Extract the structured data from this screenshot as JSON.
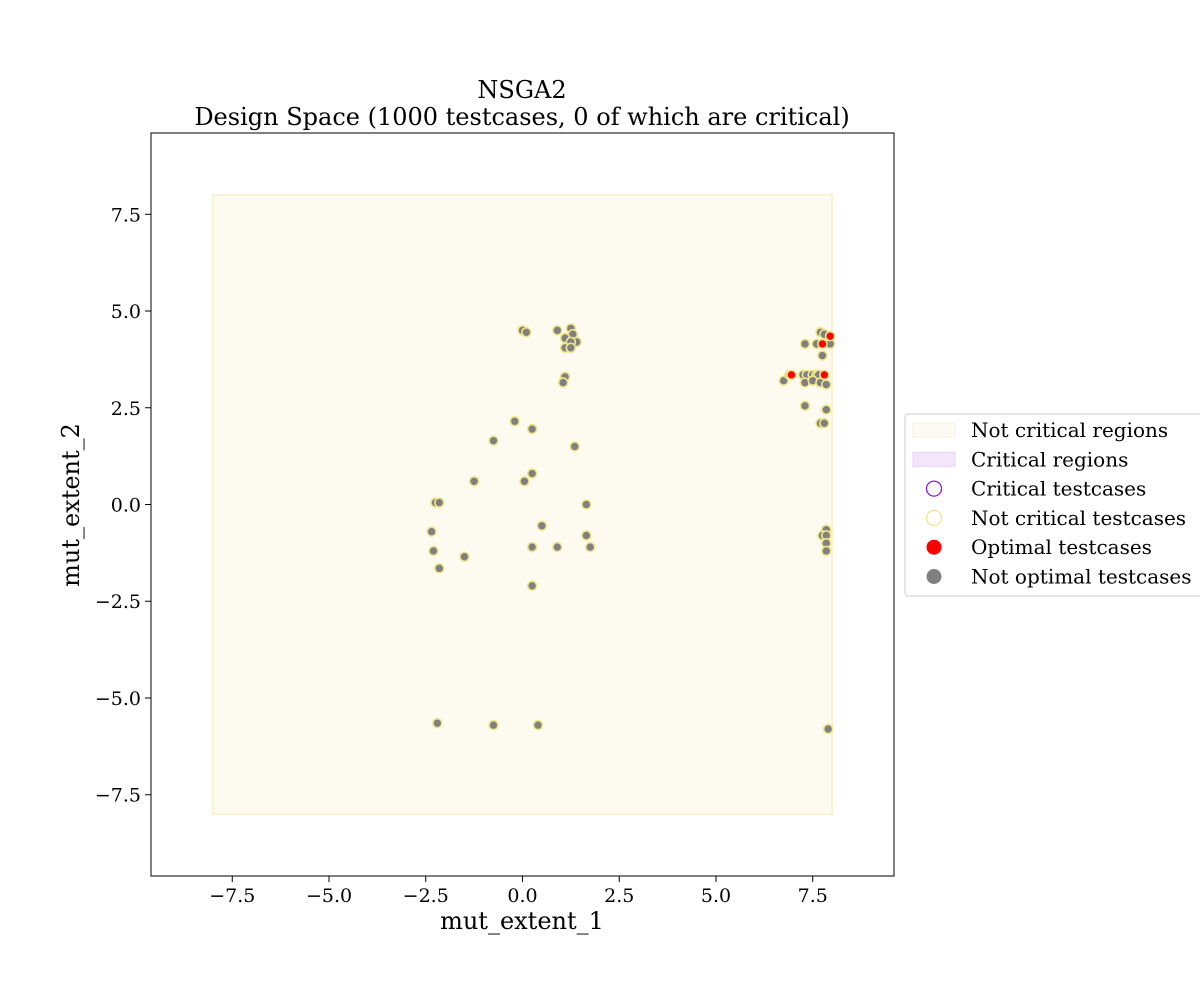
{
  "chart_data": {
    "type": "scatter",
    "title": "NSGA2",
    "subtitle": "Design Space (1000 testcases, 0 of which are critical)",
    "xlabel": "mut_extent_1",
    "ylabel": "mut_extent_2",
    "xlim": [
      -9.6,
      9.6
    ],
    "ylim": [
      -9.6,
      9.6
    ],
    "xticks": [
      -7.5,
      -5.0,
      -2.5,
      0.0,
      2.5,
      5.0,
      7.5
    ],
    "yticks": [
      -7.5,
      -5.0,
      -2.5,
      0.0,
      2.5,
      5.0,
      7.5
    ],
    "xtick_labels": [
      "−7.5",
      "−5.0",
      "−2.5",
      "0.0",
      "2.5",
      "5.0",
      "7.5"
    ],
    "ytick_labels": [
      "−7.5",
      "−5.0",
      "−2.5",
      "0.0",
      "2.5",
      "5.0",
      "7.5"
    ],
    "grid": false,
    "legend_placement": "center-right outside",
    "regions": [
      {
        "name": "Not critical regions",
        "x_range": [
          -8,
          8
        ],
        "y_range": [
          -8,
          8
        ],
        "color": "#fdfbf0",
        "edge": "#f6f0c8"
      }
    ],
    "legend": [
      {
        "label": "Not critical regions",
        "kind": "patch",
        "color": "#fbfbf3",
        "edge": "#f3f3e0"
      },
      {
        "label": "Critical regions",
        "kind": "patch",
        "color": "#f3e6fa",
        "edge": "#e9d4f5"
      },
      {
        "label": "Critical testcases",
        "kind": "ring",
        "color": "#8a1fc9"
      },
      {
        "label": "Not critical testcases",
        "kind": "ring",
        "color": "#f0e68c"
      },
      {
        "label": "Optimal testcases",
        "kind": "dot",
        "color": "#ff0000"
      },
      {
        "label": "Not optimal testcases",
        "kind": "dot",
        "color": "#808080"
      }
    ],
    "series": [
      {
        "name": "Not optimal testcases",
        "fill": "#808080",
        "edge": "#f0e68c",
        "points": [
          [
            0.0,
            4.5
          ],
          [
            0.1,
            4.45
          ],
          [
            0.9,
            4.5
          ],
          [
            1.25,
            4.55
          ],
          [
            1.3,
            4.4
          ],
          [
            1.1,
            4.3
          ],
          [
            1.4,
            4.2
          ],
          [
            1.25,
            4.2
          ],
          [
            1.1,
            4.05
          ],
          [
            1.25,
            4.05
          ],
          [
            1.1,
            3.3
          ],
          [
            1.05,
            3.15
          ],
          [
            -0.2,
            2.15
          ],
          [
            0.25,
            1.95
          ],
          [
            -0.75,
            1.65
          ],
          [
            1.35,
            1.5
          ],
          [
            0.25,
            0.8
          ],
          [
            0.05,
            0.6
          ],
          [
            -1.25,
            0.6
          ],
          [
            -2.25,
            0.05
          ],
          [
            -2.15,
            0.05
          ],
          [
            1.65,
            0.0
          ],
          [
            0.5,
            -0.55
          ],
          [
            -2.35,
            -0.7
          ],
          [
            1.65,
            -0.8
          ],
          [
            -2.3,
            -1.2
          ],
          [
            0.25,
            -1.1
          ],
          [
            0.9,
            -1.1
          ],
          [
            1.75,
            -1.1
          ],
          [
            -1.5,
            -1.35
          ],
          [
            -2.15,
            -1.65
          ],
          [
            0.25,
            -2.1
          ],
          [
            -2.2,
            -5.65
          ],
          [
            -0.75,
            -5.7
          ],
          [
            0.4,
            -5.7
          ],
          [
            7.9,
            -5.8
          ],
          [
            7.7,
            4.45
          ],
          [
            7.8,
            4.4
          ],
          [
            7.6,
            4.15
          ],
          [
            7.95,
            4.15
          ],
          [
            7.3,
            4.15
          ],
          [
            7.75,
            3.85
          ],
          [
            6.75,
            3.2
          ],
          [
            6.9,
            3.35
          ],
          [
            7.25,
            3.35
          ],
          [
            7.35,
            3.35
          ],
          [
            7.5,
            3.35
          ],
          [
            7.6,
            3.35
          ],
          [
            7.65,
            3.35
          ],
          [
            7.3,
            3.15
          ],
          [
            7.5,
            3.2
          ],
          [
            7.7,
            3.15
          ],
          [
            7.85,
            3.1
          ],
          [
            7.3,
            2.55
          ],
          [
            7.85,
            2.45
          ],
          [
            7.7,
            2.1
          ],
          [
            7.8,
            2.1
          ],
          [
            7.85,
            -0.65
          ],
          [
            7.75,
            -0.8
          ],
          [
            7.85,
            -0.8
          ],
          [
            7.85,
            -1.0
          ],
          [
            7.85,
            -1.2
          ]
        ]
      },
      {
        "name": "Optimal testcases",
        "fill": "#ff0000",
        "edge": "#f0e68c",
        "points": [
          [
            7.95,
            4.35
          ],
          [
            7.75,
            4.15
          ],
          [
            6.95,
            3.35
          ],
          [
            7.8,
            3.35
          ]
        ]
      }
    ]
  }
}
